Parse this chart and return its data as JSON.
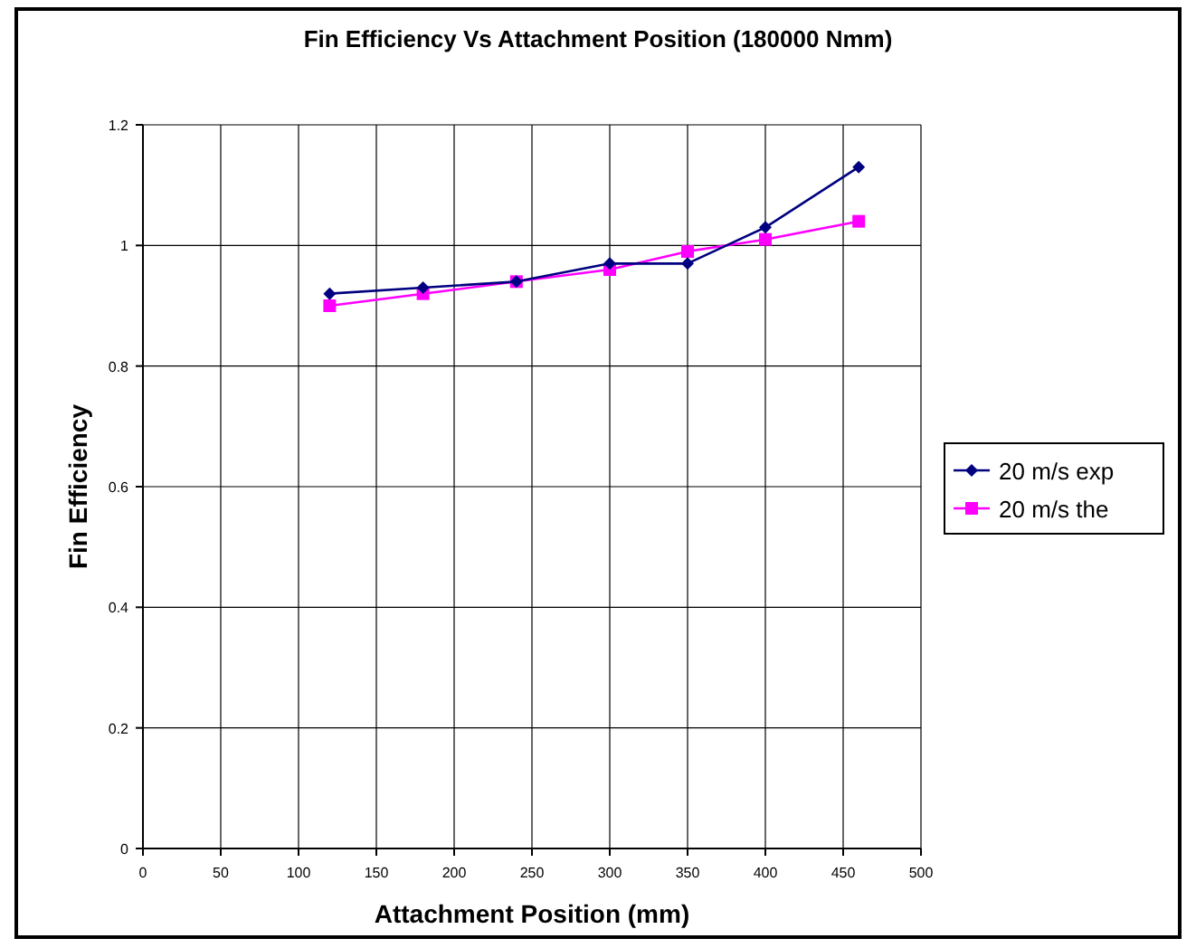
{
  "chart_data": {
    "type": "line",
    "title": "Fin Efficiency Vs Attachment Position (180000 Nmm)",
    "xlabel": "Attachment Position (mm)",
    "ylabel": "Fin Efficiency",
    "x": [
      120,
      180,
      240,
      300,
      350,
      400,
      460
    ],
    "series": [
      {
        "name": "20 m/s exp",
        "color": "#000080",
        "marker": "diamond",
        "values": [
          0.92,
          0.93,
          0.94,
          0.97,
          0.97,
          1.03,
          1.13
        ]
      },
      {
        "name": "20 m/s the",
        "color": "#ff00ff",
        "marker": "square",
        "values": [
          0.9,
          0.92,
          0.94,
          0.96,
          0.99,
          1.01,
          1.04
        ]
      }
    ],
    "xlim": [
      0,
      500
    ],
    "xticks": [
      0,
      50,
      100,
      150,
      200,
      250,
      300,
      350,
      400,
      450,
      500
    ],
    "ylim": [
      0,
      1.2
    ],
    "yticks": [
      0,
      0.2,
      0.4,
      0.6,
      0.8,
      1,
      1.2
    ],
    "grid": true,
    "legend": "right",
    "line_style": "solid"
  }
}
